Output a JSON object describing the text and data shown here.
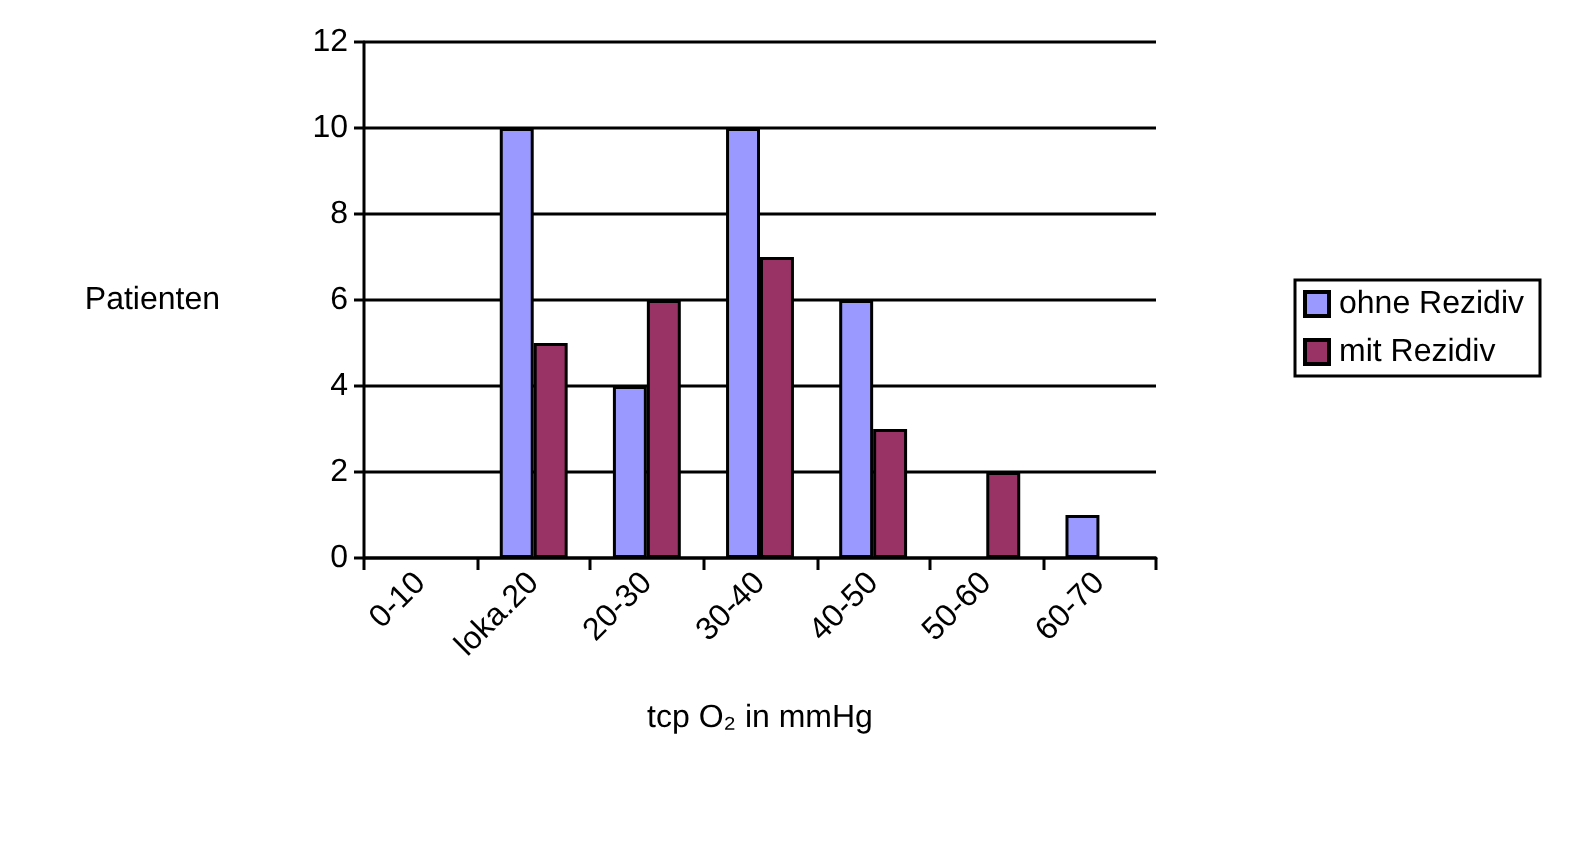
{
  "chart_data": {
    "type": "bar",
    "xlabel": "tcp O₂ in mmHg",
    "ylabel": "Patienten",
    "categories": [
      "0-10",
      "loka.20",
      "20-30",
      "30-40",
      "40-50",
      "50-60",
      "60-70"
    ],
    "series": [
      {
        "name": "ohne Rezidiv",
        "color": "#9999ff",
        "values": [
          0,
          10,
          4,
          10,
          6,
          0,
          1
        ]
      },
      {
        "name": "mit Rezidiv",
        "color": "#993366",
        "values": [
          0,
          5,
          6,
          7,
          3,
          2,
          0
        ]
      }
    ],
    "ylim": [
      0,
      12
    ],
    "yticks": [
      0,
      2,
      4,
      6,
      8,
      10,
      12
    ],
    "grid": "y",
    "legend": "right"
  }
}
